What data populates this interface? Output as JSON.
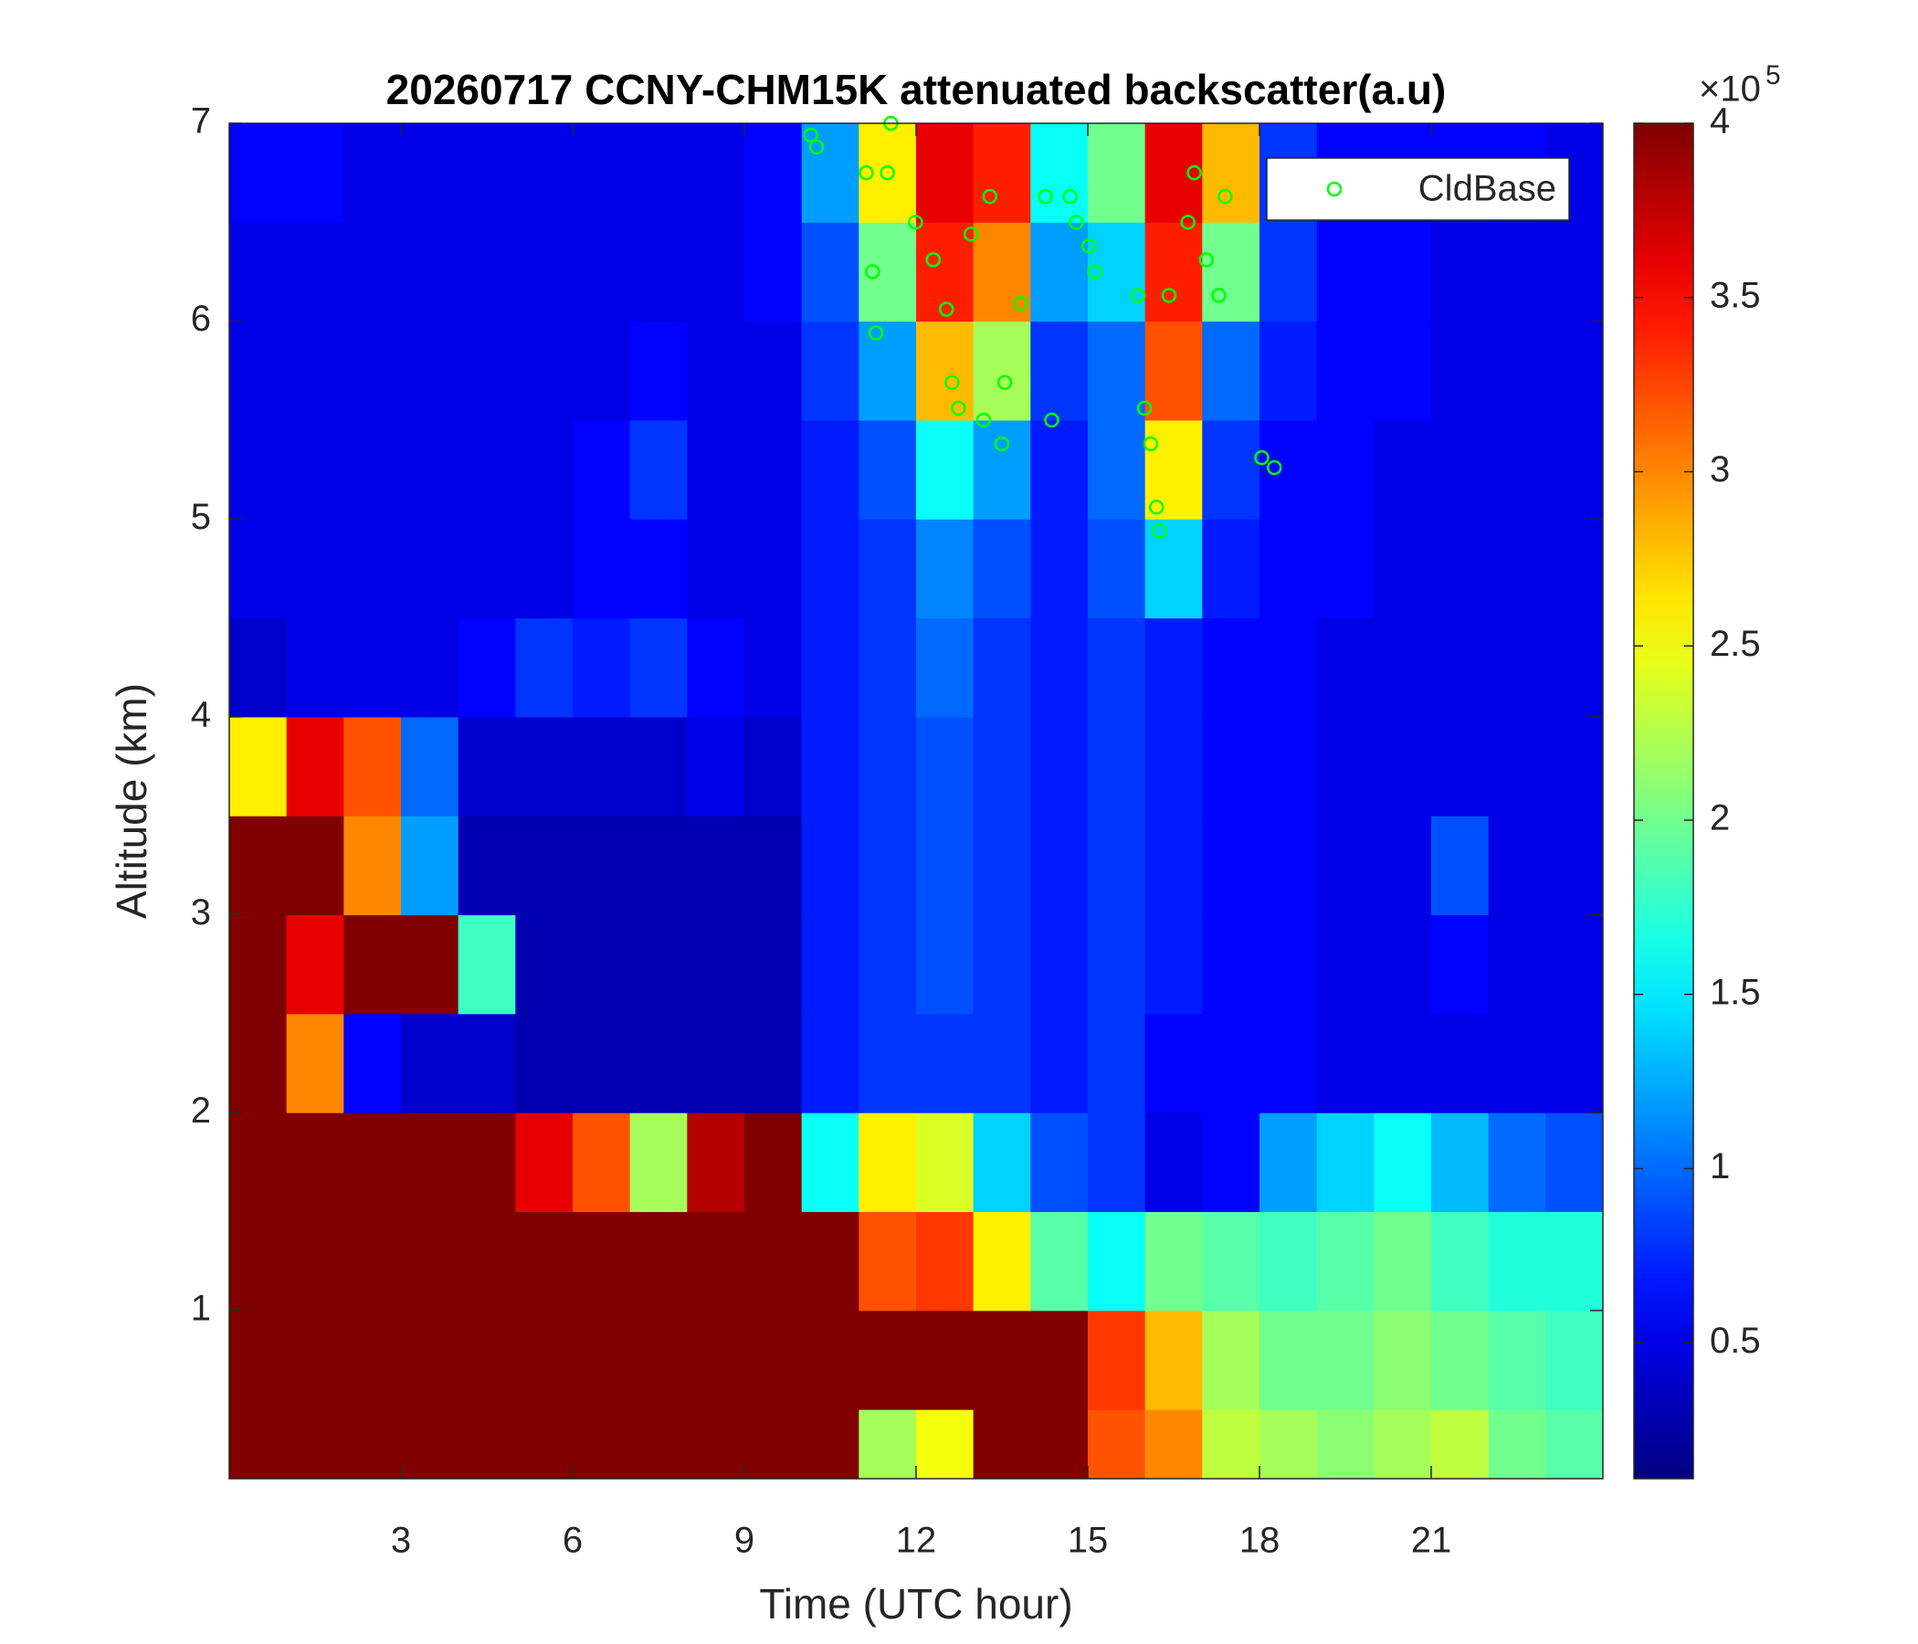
{
  "chart_data": {
    "type": "heatmap",
    "title": "20260717 CCNY-CHM15K attenuated backscatter(a.u)",
    "xlabel": "Time (UTC hour)",
    "ylabel": "Altitude (km)",
    "x_edges": [
      0,
      1,
      2,
      3,
      4,
      5,
      6,
      7,
      8,
      9,
      10,
      11,
      12,
      13,
      14,
      15,
      16,
      17,
      18,
      19,
      20,
      21,
      22,
      23,
      24
    ],
    "y_edges": [
      0.15,
      0.5,
      1,
      1.5,
      2,
      2.5,
      3,
      3.5,
      4,
      4.5,
      5,
      5.5,
      6,
      6.5,
      7
    ],
    "z": [
      [
        4,
        4,
        4,
        4,
        4,
        4,
        4,
        4,
        4,
        4,
        4,
        2.2,
        2.5,
        4,
        4,
        3.2,
        3,
        2.3,
        2.2,
        2.1,
        2.2,
        2.3,
        2,
        1.9
      ],
      [
        4,
        4,
        4,
        4,
        4,
        4,
        4,
        4,
        4,
        4,
        4,
        4,
        4,
        4,
        4,
        3.3,
        2.8,
        2.2,
        2,
        2,
        2.1,
        2,
        1.9,
        1.8
      ],
      [
        4,
        4,
        4,
        4,
        4,
        4,
        4,
        4,
        4,
        4,
        4,
        3.2,
        3.3,
        2.6,
        1.9,
        1.6,
        2,
        1.9,
        1.8,
        1.9,
        2,
        1.8,
        1.7,
        1.7
      ],
      [
        4,
        4,
        4,
        4,
        4,
        3.6,
        3.2,
        2.2,
        3.8,
        4,
        1.6,
        2.6,
        2.4,
        1.4,
        0.9,
        0.8,
        0.5,
        0.6,
        1.2,
        1.4,
        1.6,
        1.3,
        1,
        0.9
      ],
      [
        4,
        3,
        0.6,
        0.4,
        0.4,
        0.3,
        0.3,
        0.3,
        0.3,
        0.3,
        0.7,
        0.8,
        0.8,
        0.8,
        0.7,
        0.8,
        0.6,
        0.6,
        0.6,
        0.5,
        0.5,
        0.5,
        0.5,
        0.5
      ],
      [
        4,
        3.6,
        4,
        4,
        1.8,
        0.3,
        0.3,
        0.3,
        0.3,
        0.3,
        0.7,
        0.8,
        0.9,
        0.8,
        0.7,
        0.8,
        0.7,
        0.6,
        0.6,
        0.5,
        0.5,
        0.6,
        0.5,
        0.5
      ],
      [
        4,
        4,
        3,
        1.2,
        0.3,
        0.3,
        0.3,
        0.3,
        0.3,
        0.3,
        0.7,
        0.8,
        0.9,
        0.8,
        0.7,
        0.8,
        0.7,
        0.6,
        0.6,
        0.5,
        0.5,
        0.9,
        0.5,
        0.5
      ],
      [
        2.6,
        3.6,
        3.2,
        1,
        0.4,
        0.4,
        0.4,
        0.4,
        0.5,
        0.4,
        0.7,
        0.8,
        0.9,
        0.8,
        0.7,
        0.8,
        0.7,
        0.6,
        0.6,
        0.5,
        0.5,
        0.5,
        0.5,
        0.5
      ],
      [
        0.4,
        0.5,
        0.5,
        0.5,
        0.6,
        0.8,
        0.7,
        0.8,
        0.6,
        0.5,
        0.7,
        0.8,
        1,
        0.8,
        0.7,
        0.8,
        0.7,
        0.6,
        0.6,
        0.5,
        0.5,
        0.5,
        0.5,
        0.5
      ],
      [
        0.5,
        0.5,
        0.5,
        0.5,
        0.5,
        0.5,
        0.6,
        0.6,
        0.5,
        0.5,
        0.7,
        0.8,
        1.1,
        0.9,
        0.7,
        0.9,
        1.4,
        0.7,
        0.6,
        0.6,
        0.5,
        0.5,
        0.5,
        0.5
      ],
      [
        0.5,
        0.5,
        0.5,
        0.5,
        0.5,
        0.5,
        0.6,
        0.8,
        0.5,
        0.5,
        0.7,
        0.9,
        1.6,
        1.2,
        0.7,
        1,
        2.6,
        0.8,
        0.6,
        0.6,
        0.5,
        0.5,
        0.5,
        0.5
      ],
      [
        0.5,
        0.5,
        0.5,
        0.5,
        0.5,
        0.5,
        0.5,
        0.6,
        0.5,
        0.5,
        0.8,
        1.2,
        2.8,
        2.2,
        0.8,
        1,
        3.2,
        1,
        0.7,
        0.6,
        0.6,
        0.5,
        0.5,
        0.5
      ],
      [
        0.5,
        0.5,
        0.5,
        0.5,
        0.5,
        0.5,
        0.5,
        0.5,
        0.5,
        0.6,
        0.9,
        2,
        3.4,
        3,
        1.2,
        1.4,
        3.4,
        2,
        0.8,
        0.6,
        0.6,
        0.5,
        0.5,
        0.5
      ],
      [
        0.6,
        0.6,
        0.5,
        0.5,
        0.5,
        0.5,
        0.5,
        0.5,
        0.5,
        0.6,
        1.2,
        2.6,
        3.6,
        3.4,
        1.6,
        2,
        3.6,
        2.8,
        0.8,
        0.6,
        0.6,
        0.6,
        0.6,
        0.5
      ]
    ],
    "xlim": [
      0,
      24
    ],
    "ylim": [
      0.15,
      7
    ],
    "xticks": [
      3,
      6,
      9,
      12,
      15,
      18,
      21
    ],
    "yticks": [
      1,
      2,
      3,
      4,
      5,
      6,
      7
    ],
    "colormap": "jet",
    "colorbar": {
      "clim": [
        0.11,
        4
      ],
      "ticks": [
        0.5,
        1,
        1.5,
        2,
        2.5,
        3,
        3.5,
        4
      ],
      "multiplier_base": "×10",
      "multiplier_exponent": "5"
    },
    "overlay": {
      "type": "scatter",
      "name": "CldBase",
      "color": "#00ff00",
      "x": [
        10.16,
        10.26,
        11.13,
        11.24,
        11.3,
        11.99,
        12.3,
        12.53,
        12.63,
        12.74,
        12.96,
        13.29,
        13.18,
        13.5,
        13.55,
        13.83,
        14.26,
        14.37,
        14.69,
        14.8,
        15.02,
        15.12,
        15.88,
        15.99,
        16.1,
        16.2,
        16.25,
        16.42,
        16.75,
        16.86,
        17.07,
        17.29,
        17.4,
        18.04,
        18.26,
        11.56,
        11.5
      ],
      "y": [
        6.94,
        6.88,
        6.75,
        6.25,
        5.94,
        6.5,
        6.31,
        6.06,
        5.69,
        5.56,
        6.44,
        6.63,
        5.5,
        5.38,
        5.69,
        6.09,
        6.63,
        5.5,
        6.63,
        6.5,
        6.38,
        6.25,
        6.13,
        5.56,
        5.38,
        5.06,
        4.94,
        6.13,
        6.5,
        6.75,
        6.31,
        6.13,
        6.63,
        5.31,
        5.26,
        7.0,
        6.75
      ]
    },
    "legend": "northeast"
  }
}
